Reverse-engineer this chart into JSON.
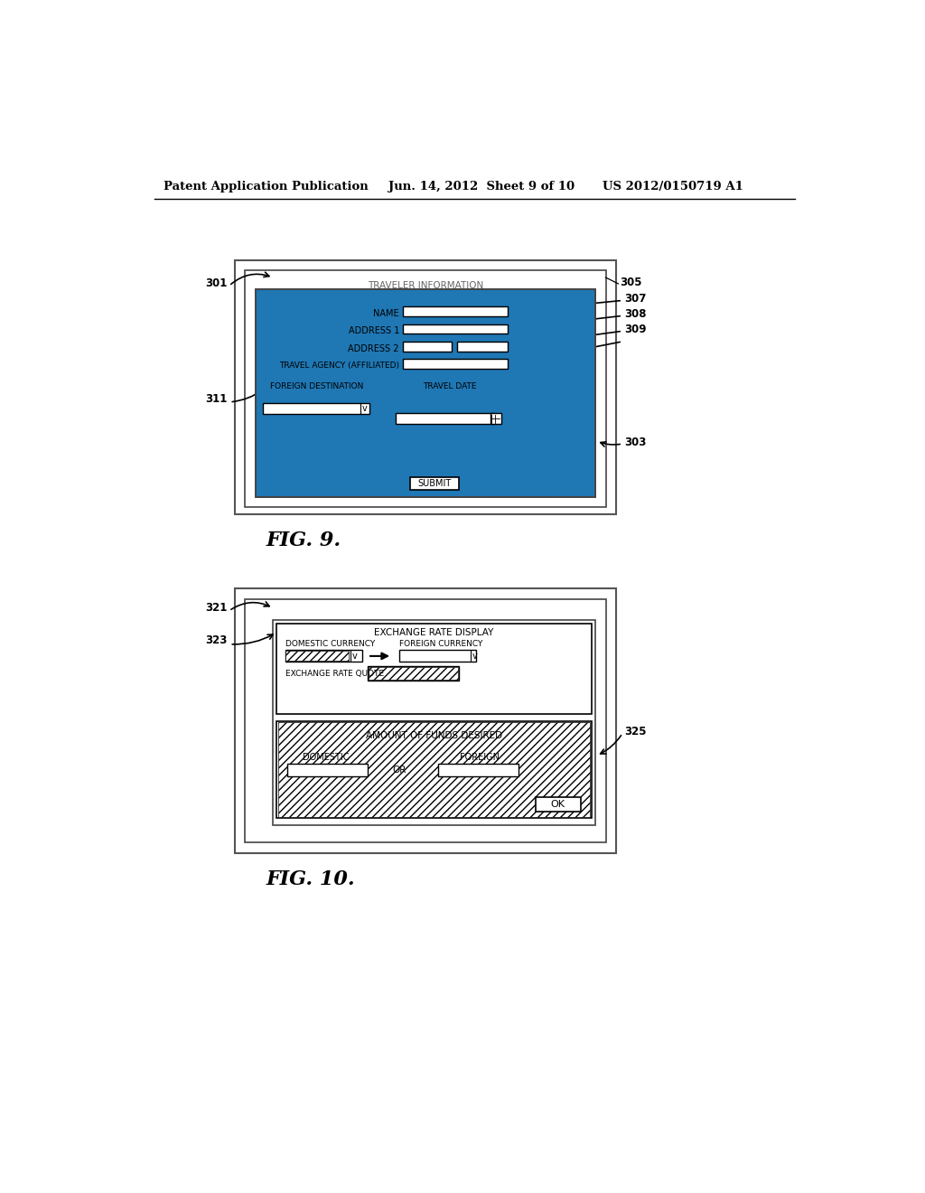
{
  "header_left": "Patent Application Publication",
  "header_mid": "Jun. 14, 2012  Sheet 9 of 10",
  "header_right": "US 2012/0150719 A1",
  "fig9_label": "FIG. 9.",
  "fig10_label": "FIG. 10.",
  "ref_301": "301",
  "ref_303": "303",
  "ref_305": "305",
  "ref_307": "307",
  "ref_308": "308",
  "ref_309": "309",
  "ref_311": "311",
  "ref_321": "321",
  "ref_323": "323",
  "ref_325": "325",
  "traveler_info_title": "TRAVELER INFORMATION",
  "name_label": "NAME",
  "address1_label": "ADDRESS 1",
  "address2_label": "ADDRESS 2",
  "travel_agency_label": "TRAVEL AGENCY (AFFILIATED)",
  "foreign_dest_label": "FOREIGN DESTINATION",
  "travel_date_label": "TRAVEL DATE",
  "submit_label": "SUBMIT",
  "exchange_rate_title": "EXCHANGE RATE DISPLAY",
  "domestic_currency_label": "DOMESTIC CURRENCY",
  "foreign_currency_label": "FOREIGN CURRENCY",
  "exchange_rate_quote_label": "EXCHANGE RATE QUOTE",
  "amount_funds_label": "AMOUNT OF FUNDS DESIRED",
  "domestic_label": "DOMESTIC",
  "or_label": "OR",
  "foreign_label": "FOREIGN",
  "ok_label": "OK",
  "bg_color": "#ffffff"
}
